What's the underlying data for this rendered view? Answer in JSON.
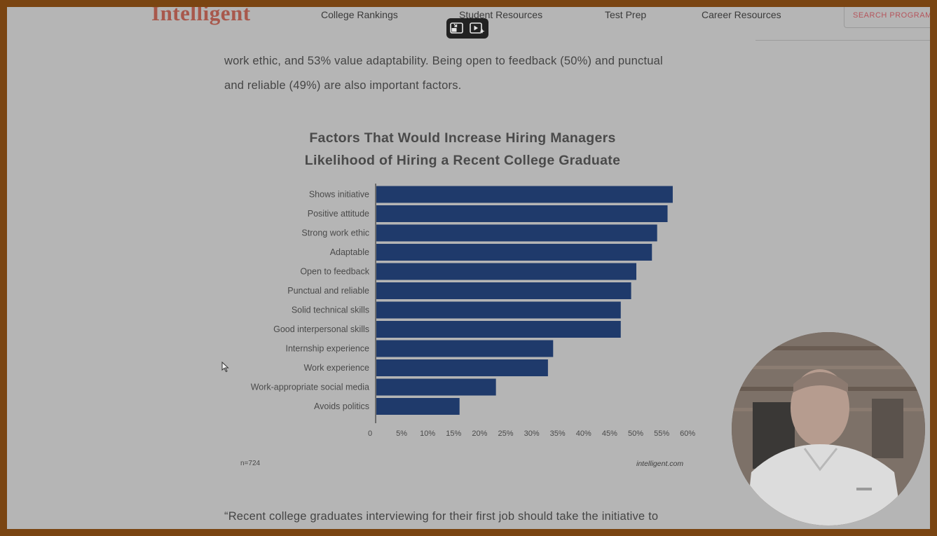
{
  "nav": {
    "logo": "Intelligent",
    "links": [
      "College Rankings",
      "Student Resources",
      "Test Prep",
      "Career Resources"
    ],
    "search_label": "SEARCH PROGRAMS"
  },
  "article": {
    "para_line1": "work ethic, and 53% value adaptability. Being open to feedback (50%) and punctual",
    "para_line2": "and reliable (49%) are also important factors.",
    "quote_line": "“Recent college graduates interviewing for their first job should take the initiative to"
  },
  "chart_data": {
    "type": "bar",
    "orientation": "horizontal",
    "title_line1": "Factors That Would Increase Hiring Managers",
    "title_line2": "Likelihood of Hiring a Recent College Graduate",
    "categories": [
      "Shows initiative",
      "Positive attitude",
      "Strong work ethic",
      "Adaptable",
      "Open to feedback",
      "Punctual and reliable",
      "Solid technical skills",
      "Good interpersonal skills",
      "Internship experience",
      "Work experience",
      "Work-appropriate social media",
      "Avoids politics"
    ],
    "values": [
      57,
      56,
      54,
      53,
      50,
      49,
      47,
      47,
      34,
      33,
      23,
      16
    ],
    "xticks": [
      "0",
      "5%",
      "10%",
      "15%",
      "20%",
      "25%",
      "30%",
      "35%",
      "40%",
      "45%",
      "50%",
      "55%",
      "60%"
    ],
    "xlim": [
      0,
      60
    ],
    "bar_color": "#1f3a6b",
    "footnote": "n=724",
    "source": "intelligent.com"
  }
}
